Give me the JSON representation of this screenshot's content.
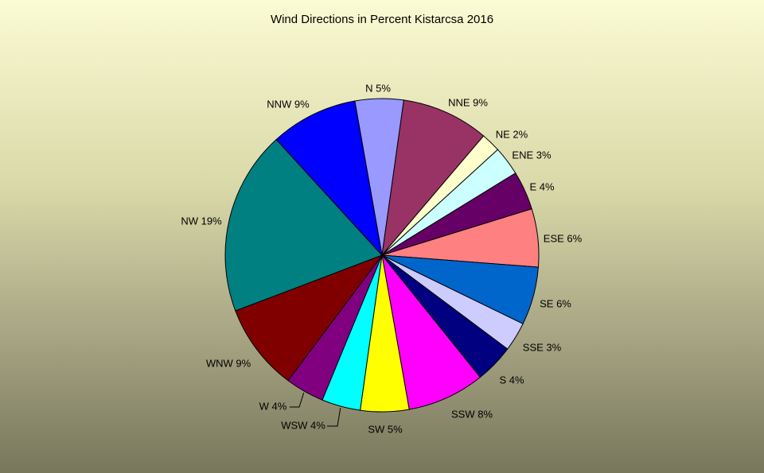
{
  "chart_data": {
    "type": "pie",
    "title": "Wind Directions in Percent Kistarcsa 2016",
    "unit": "%",
    "slices": [
      {
        "label": "N 5%",
        "category": "N",
        "value": 5,
        "color": "#9999ff"
      },
      {
        "label": "NNE 9%",
        "category": "NNE",
        "value": 9,
        "color": "#993366"
      },
      {
        "label": "NE 2%",
        "category": "NE",
        "value": 2,
        "color": "#ffffcc"
      },
      {
        "label": "ENE 3%",
        "category": "ENE",
        "value": 3,
        "color": "#ccffff"
      },
      {
        "label": "E 4%",
        "category": "E",
        "value": 4,
        "color": "#660066"
      },
      {
        "label": "ESE 6%",
        "category": "ESE",
        "value": 6,
        "color": "#ff8080"
      },
      {
        "label": "SE 6%",
        "category": "SE",
        "value": 6,
        "color": "#0066cc"
      },
      {
        "label": "SSE 3%",
        "category": "SSE",
        "value": 3,
        "color": "#ccccff"
      },
      {
        "label": "S 4%",
        "category": "S",
        "value": 4,
        "color": "#000080"
      },
      {
        "label": "SSW 8%",
        "category": "SSW",
        "value": 8,
        "color": "#ff00ff"
      },
      {
        "label": "SW 5%",
        "category": "SW",
        "value": 5,
        "color": "#ffff00"
      },
      {
        "label": "WSW 4%",
        "category": "WSW",
        "value": 4,
        "color": "#00ffff"
      },
      {
        "label": "W 4%",
        "category": "W",
        "value": 4,
        "color": "#800080"
      },
      {
        "label": "WNW 9%",
        "category": "WNW",
        "value": 9,
        "color": "#800000"
      },
      {
        "label": "NW 19%",
        "category": "NW",
        "value": 19,
        "color": "#008080"
      },
      {
        "label": "NNW 9%",
        "category": "NNW",
        "value": 9,
        "color": "#0000ff"
      }
    ],
    "legend": "none",
    "data_labels": "outside"
  }
}
